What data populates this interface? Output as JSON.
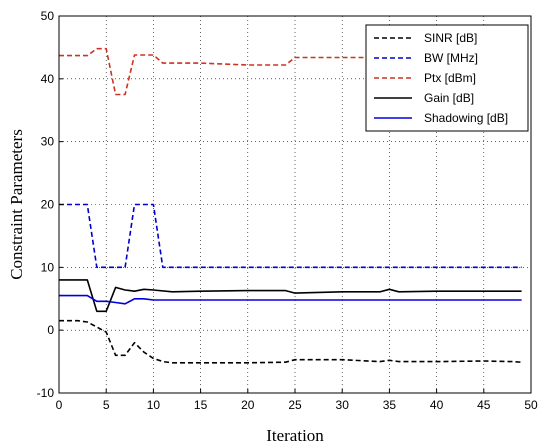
{
  "chart_data": {
    "type": "line",
    "xlabel": "Iteration",
    "ylabel": "Constraint Parameters",
    "xlim": [
      0,
      50
    ],
    "ylim": [
      -10,
      50
    ],
    "xticks": [
      0,
      5,
      10,
      15,
      20,
      25,
      30,
      35,
      40,
      45,
      50
    ],
    "yticks": [
      -10,
      0,
      10,
      20,
      30,
      40,
      50
    ],
    "xtick_labels": [
      "0",
      "5",
      "10",
      "15",
      "20",
      "25",
      "30",
      "35",
      "40",
      "45",
      "50"
    ],
    "ytick_labels": [
      "-10",
      "0",
      "10",
      "20",
      "30",
      "40",
      "50"
    ],
    "grid": "dotted",
    "legend_position": "top-right",
    "series": [
      {
        "name": "SINR [dB]",
        "color": "#000000",
        "dash": "dashed",
        "x": [
          0,
          2,
          3,
          4,
          5,
          6,
          7,
          8,
          9,
          10,
          11,
          12,
          15,
          20,
          24,
          25,
          30,
          34,
          35,
          36,
          40,
          45,
          48,
          49
        ],
        "y": [
          1.5,
          1.5,
          1.3,
          0.5,
          -0.3,
          -4.0,
          -4.0,
          -2.0,
          -3.5,
          -4.5,
          -5.0,
          -5.2,
          -5.2,
          -5.2,
          -5.1,
          -4.7,
          -4.7,
          -5.0,
          -4.8,
          -5.0,
          -5.0,
          -4.9,
          -5.0,
          -5.1
        ]
      },
      {
        "name": "BW [MHz]",
        "color": "#0000cc",
        "dash": "dashed",
        "x": [
          0,
          3,
          4,
          5,
          6,
          7,
          8,
          9,
          10,
          11,
          12,
          15,
          20,
          25,
          30,
          35,
          40,
          45,
          49
        ],
        "y": [
          20,
          20,
          10,
          10,
          10,
          10,
          20,
          20,
          20,
          10,
          10,
          10,
          10,
          10,
          10,
          10,
          10,
          10,
          10
        ]
      },
      {
        "name": "Ptx [dBm]",
        "color": "#cc3322",
        "dash": "dashed",
        "x": [
          0,
          3,
          4,
          5,
          6,
          7,
          8,
          9,
          10,
          11,
          12,
          15,
          20,
          24,
          25,
          30,
          35,
          40,
          45,
          49
        ],
        "y": [
          43.7,
          43.7,
          44.8,
          44.8,
          37.5,
          37.5,
          43.8,
          43.8,
          43.8,
          42.5,
          42.5,
          42.5,
          42.2,
          42.2,
          43.4,
          43.4,
          43.4,
          43.4,
          43.4,
          43.4
        ]
      },
      {
        "name": "Gain [dB]",
        "color": "#000000",
        "dash": "solid",
        "x": [
          0,
          3,
          4,
          5,
          6,
          7,
          8,
          9,
          10,
          12,
          15,
          20,
          24,
          25,
          30,
          34,
          35,
          36,
          40,
          45,
          49
        ],
        "y": [
          8.0,
          8.0,
          3.0,
          3.0,
          6.8,
          6.4,
          6.2,
          6.5,
          6.4,
          6.1,
          6.2,
          6.3,
          6.3,
          5.9,
          6.1,
          6.1,
          6.5,
          6.1,
          6.2,
          6.2,
          6.2
        ]
      },
      {
        "name": "Shadowing [dB]",
        "color": "#0000dd",
        "dash": "solid",
        "x": [
          0,
          3,
          4,
          5,
          6,
          7,
          8,
          9,
          10,
          15,
          20,
          25,
          30,
          35,
          40,
          45,
          49
        ],
        "y": [
          5.5,
          5.5,
          4.6,
          4.6,
          4.4,
          4.2,
          5.0,
          5.0,
          4.8,
          4.8,
          4.8,
          4.8,
          4.8,
          4.8,
          4.8,
          4.8,
          4.8
        ]
      }
    ]
  }
}
